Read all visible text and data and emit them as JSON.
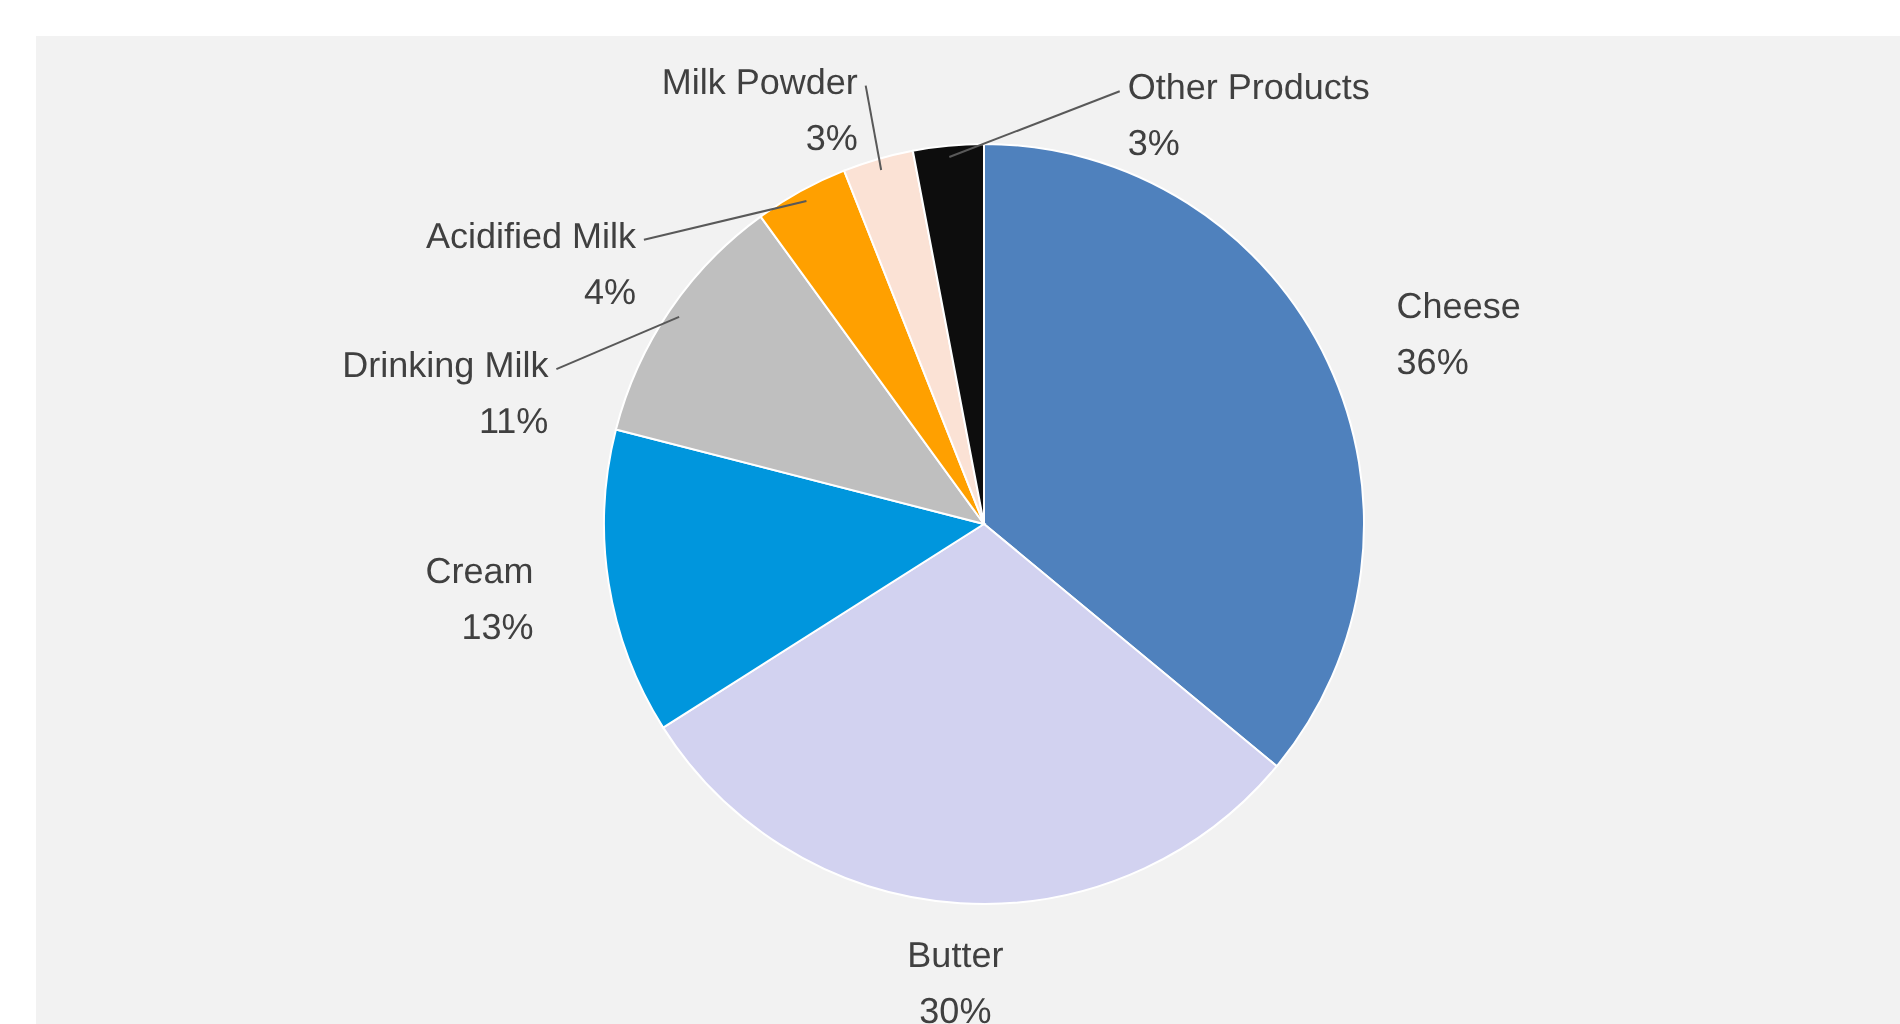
{
  "chart_data": {
    "type": "pie",
    "categories": [
      "Cheese",
      "Butter",
      "Cream",
      "Drinking Milk",
      "Acidified Milk",
      "Milk Powder",
      "Other Products"
    ],
    "values": [
      36,
      30,
      13,
      11,
      4,
      3,
      3
    ],
    "colors": [
      "#4f81bd",
      "#d2d2f0",
      "#0096dd",
      "#bfbfbf",
      "#ffa000",
      "#fbe2d5",
      "#0d0d0d"
    ],
    "value_labels": [
      "36%",
      "30%",
      "13%",
      "11%",
      "4%",
      "3%",
      "3%"
    ]
  }
}
